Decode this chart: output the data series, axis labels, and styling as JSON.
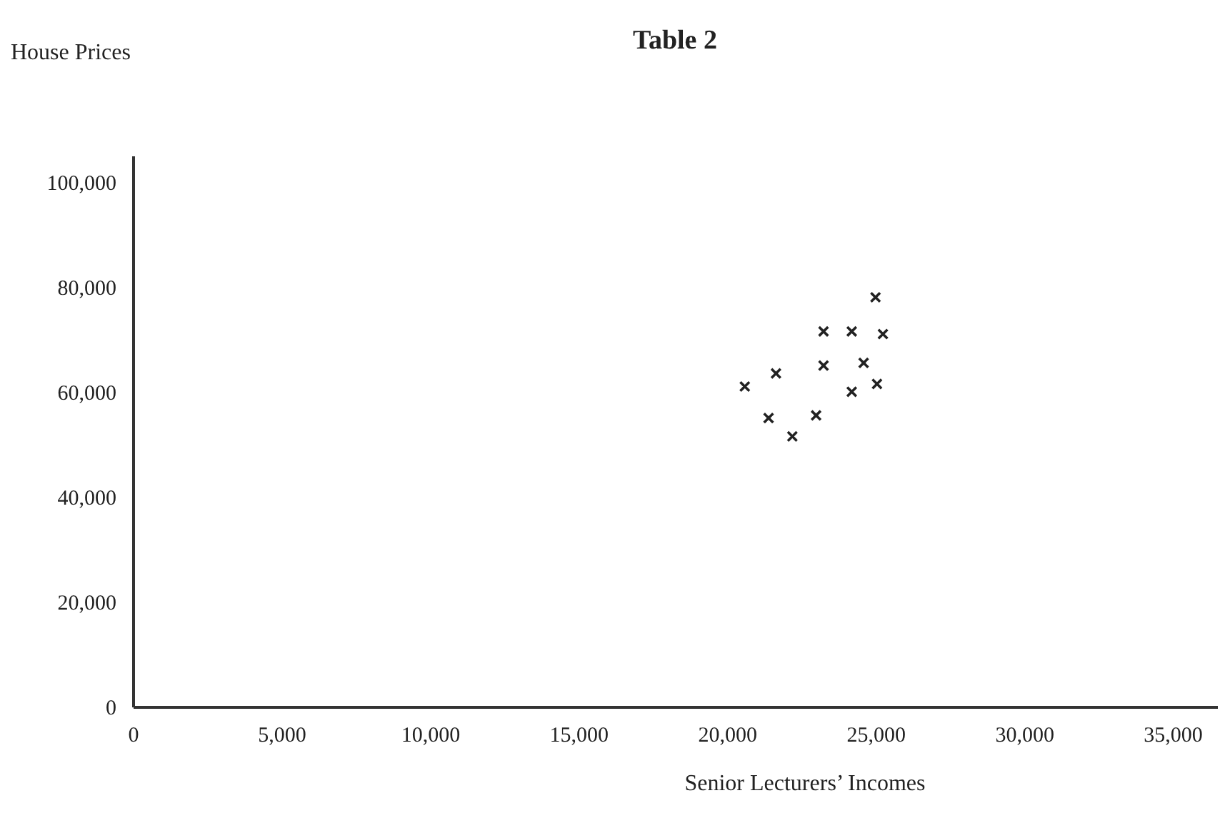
{
  "chart_data": {
    "type": "scatter",
    "title": "Table 2",
    "xlabel": "Senior Lecturers’ Incomes",
    "ylabel": "House Prices",
    "x": [
      25000,
      23250,
      24200,
      25250,
      23250,
      24600,
      20600,
      21650,
      24200,
      25050,
      21400,
      22200,
      23000
    ],
    "series": [
      {
        "color": "#222222",
        "values": [
          78000,
          71500,
          71500,
          71000,
          65000,
          65500,
          61000,
          63500,
          60000,
          61500,
          55000,
          51500,
          55500
        ]
      }
    ],
    "xlim": [
      0,
      36500
    ],
    "ylim": [
      0,
      105000
    ],
    "xticks": [
      {
        "value": 0,
        "label": "0"
      },
      {
        "value": 5000,
        "label": "5,000"
      },
      {
        "value": 10000,
        "label": "10,000"
      },
      {
        "value": 15000,
        "label": "15,000"
      },
      {
        "value": 20000,
        "label": "20,000"
      },
      {
        "value": 25000,
        "label": "25,000"
      },
      {
        "value": 30000,
        "label": "30,000"
      },
      {
        "value": 35000,
        "label": "35,000"
      }
    ],
    "yticks": [
      {
        "value": 0,
        "label": "0"
      },
      {
        "value": 20000,
        "label": "20,000"
      },
      {
        "value": 40000,
        "label": "40,000"
      },
      {
        "value": 60000,
        "label": "60,000"
      },
      {
        "value": 80000,
        "label": "80,000"
      },
      {
        "value": 100000,
        "label": "100,000"
      }
    ],
    "grid": false,
    "legend": false,
    "marker": "cross"
  }
}
